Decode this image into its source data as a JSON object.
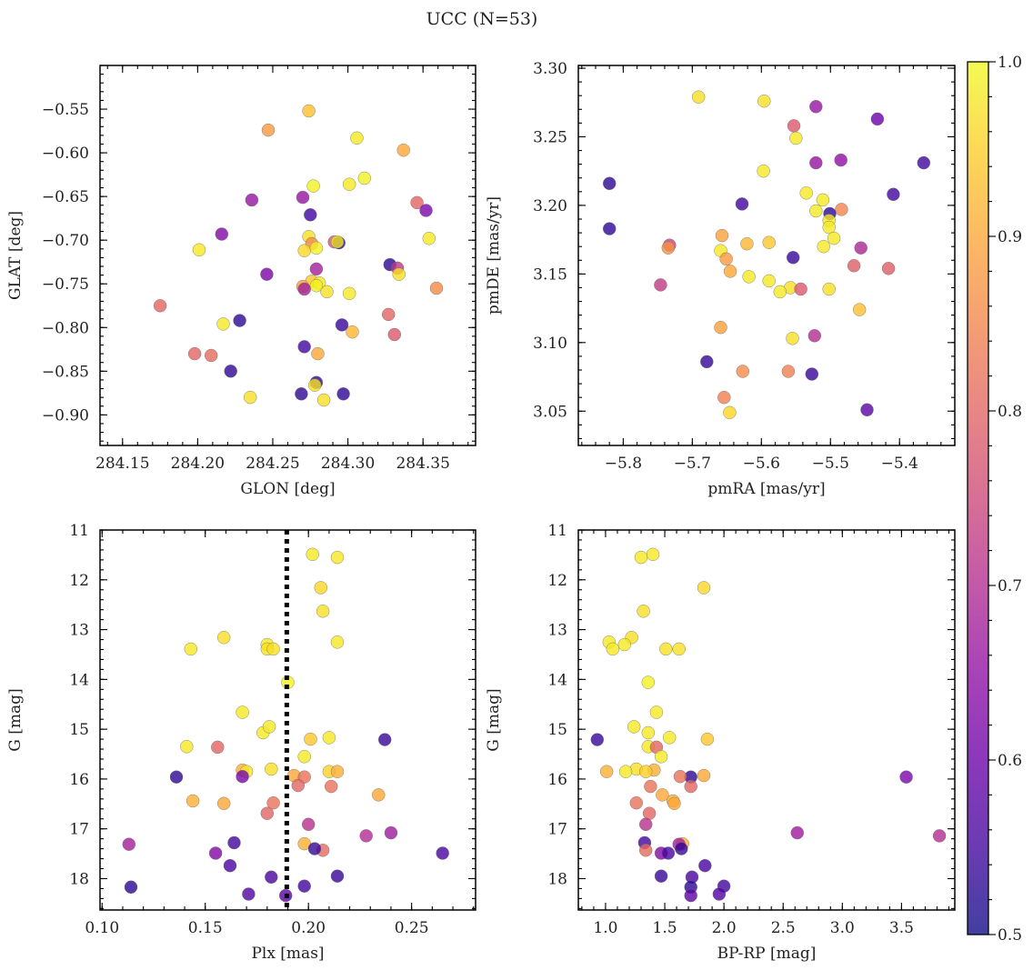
{
  "suptitle": "UCC (N=53)",
  "colorbar": {
    "min": 0.5,
    "max": 1.0,
    "ticks": [
      "0.5",
      "0.6",
      "0.7",
      "0.8",
      "0.9",
      "1.0"
    ],
    "colormap": "plasma"
  },
  "chart_data": [
    {
      "type": "scatter",
      "xlabel": "GLON [deg]",
      "ylabel": "GLAT [deg]",
      "xlim": [
        284.135,
        284.385
      ],
      "ylim": [
        -0.935,
        -0.5
      ],
      "xticks": [
        "284.15",
        "284.20",
        "284.25",
        "284.30",
        "284.35"
      ],
      "yticks": [
        "-0.55",
        "-0.60",
        "-0.65",
        "-0.70",
        "-0.75",
        "-0.80",
        "-0.85",
        "-0.90"
      ],
      "points": [
        [
          284.274,
          -0.552,
          0.93
        ],
        [
          284.247,
          -0.574,
          0.88
        ],
        [
          284.306,
          -0.583,
          0.98
        ],
        [
          284.337,
          -0.597,
          0.9
        ],
        [
          284.311,
          -0.629,
          0.99
        ],
        [
          284.301,
          -0.636,
          0.98
        ],
        [
          284.277,
          -0.638,
          0.99
        ],
        [
          284.236,
          -0.654,
          0.66
        ],
        [
          284.27,
          -0.651,
          0.66
        ],
        [
          284.346,
          -0.657,
          0.8
        ],
        [
          284.352,
          -0.666,
          0.62
        ],
        [
          284.275,
          -0.671,
          0.55
        ],
        [
          284.216,
          -0.693,
          0.63
        ],
        [
          284.274,
          -0.696,
          0.97
        ],
        [
          284.291,
          -0.702,
          0.77
        ],
        [
          284.294,
          -0.703,
          0.52
        ],
        [
          284.293,
          -0.702,
          0.98
        ],
        [
          284.276,
          -0.704,
          0.86
        ],
        [
          284.201,
          -0.711,
          0.98
        ],
        [
          284.271,
          -0.712,
          0.96
        ],
        [
          284.279,
          -0.709,
          0.99
        ],
        [
          284.354,
          -0.698,
          0.98
        ],
        [
          284.328,
          -0.728,
          0.53
        ],
        [
          284.333,
          -0.732,
          0.72
        ],
        [
          284.279,
          -0.733,
          0.68
        ],
        [
          284.246,
          -0.739,
          0.62
        ],
        [
          284.334,
          -0.739,
          0.97
        ],
        [
          284.276,
          -0.747,
          0.94
        ],
        [
          284.281,
          -0.749,
          0.98
        ],
        [
          284.279,
          -0.752,
          0.99
        ],
        [
          284.27,
          -0.753,
          0.89
        ],
        [
          284.271,
          -0.756,
          0.68
        ],
        [
          284.359,
          -0.755,
          0.86
        ],
        [
          284.286,
          -0.759,
          0.97
        ],
        [
          284.301,
          -0.761,
          0.98
        ],
        [
          284.175,
          -0.775,
          0.8
        ],
        [
          284.327,
          -0.785,
          0.8
        ],
        [
          284.228,
          -0.792,
          0.53
        ],
        [
          284.217,
          -0.796,
          0.98
        ],
        [
          284.296,
          -0.797,
          0.54
        ],
        [
          284.303,
          -0.805,
          0.92
        ],
        [
          284.331,
          -0.808,
          0.78
        ],
        [
          284.271,
          -0.822,
          0.55
        ],
        [
          284.28,
          -0.83,
          0.9
        ],
        [
          284.198,
          -0.83,
          0.8
        ],
        [
          284.209,
          -0.832,
          0.81
        ],
        [
          284.222,
          -0.85,
          0.53
        ],
        [
          284.279,
          -0.863,
          0.53
        ],
        [
          284.278,
          -0.866,
          0.97
        ],
        [
          284.269,
          -0.876,
          0.53
        ],
        [
          284.297,
          -0.876,
          0.53
        ],
        [
          284.235,
          -0.88,
          0.97
        ],
        [
          284.284,
          -0.883,
          0.97
        ]
      ]
    },
    {
      "type": "scatter",
      "xlabel": "pmRA [mas/yr]",
      "ylabel": "pmDE [mas/yr]",
      "xlim": [
        -5.865,
        -5.32
      ],
      "ylim": [
        3.025,
        3.302
      ],
      "xticks": [
        "-5.8",
        "-5.7",
        "-5.6",
        "-5.5",
        "-5.4"
      ],
      "yticks": [
        "3.30",
        "3.25",
        "3.20",
        "3.15",
        "3.10",
        "3.05"
      ],
      "points": [
        [
          -5.691,
          3.279,
          0.97
        ],
        [
          -5.596,
          3.276,
          0.97
        ],
        [
          -5.521,
          3.272,
          0.66
        ],
        [
          -5.432,
          3.263,
          0.6
        ],
        [
          -5.553,
          3.258,
          0.78
        ],
        [
          -5.55,
          3.249,
          0.98
        ],
        [
          -5.365,
          3.231,
          0.55
        ],
        [
          -5.521,
          3.231,
          0.66
        ],
        [
          -5.485,
          3.233,
          0.65
        ],
        [
          -5.597,
          3.225,
          0.98
        ],
        [
          -5.82,
          3.216,
          0.53
        ],
        [
          -5.535,
          3.209,
          0.98
        ],
        [
          -5.409,
          3.208,
          0.55
        ],
        [
          -5.511,
          3.204,
          0.98
        ],
        [
          -5.628,
          3.201,
          0.55
        ],
        [
          -5.521,
          3.196,
          0.98
        ],
        [
          -5.484,
          3.197,
          0.85
        ],
        [
          -5.501,
          3.194,
          0.53
        ],
        [
          -5.502,
          3.189,
          0.98
        ],
        [
          -5.502,
          3.184,
          0.98
        ],
        [
          -5.82,
          3.183,
          0.53
        ],
        [
          -5.657,
          3.178,
          0.89
        ],
        [
          -5.495,
          3.176,
          0.98
        ],
        [
          -5.589,
          3.173,
          0.94
        ],
        [
          -5.621,
          3.172,
          0.92
        ],
        [
          -5.733,
          3.171,
          0.74
        ],
        [
          -5.735,
          3.169,
          0.87
        ],
        [
          -5.51,
          3.17,
          0.98
        ],
        [
          -5.456,
          3.169,
          0.69
        ],
        [
          -5.659,
          3.167,
          0.98
        ],
        [
          -5.554,
          3.162,
          0.54
        ],
        [
          -5.651,
          3.161,
          0.88
        ],
        [
          -5.466,
          3.156,
          0.79
        ],
        [
          -5.645,
          3.152,
          0.9
        ],
        [
          -5.416,
          3.154,
          0.79
        ],
        [
          -5.618,
          3.148,
          0.98
        ],
        [
          -5.589,
          3.145,
          0.98
        ],
        [
          -5.746,
          3.142,
          0.73
        ],
        [
          -5.558,
          3.14,
          0.97
        ],
        [
          -5.543,
          3.139,
          0.78
        ],
        [
          -5.502,
          3.139,
          0.97
        ],
        [
          -5.573,
          3.137,
          0.98
        ],
        [
          -5.458,
          3.124,
          0.93
        ],
        [
          -5.659,
          3.111,
          0.89
        ],
        [
          -5.523,
          3.105,
          0.7
        ],
        [
          -5.555,
          3.103,
          0.97
        ],
        [
          -5.679,
          3.086,
          0.54
        ],
        [
          -5.527,
          3.077,
          0.54
        ],
        [
          -5.627,
          3.079,
          0.86
        ],
        [
          -5.561,
          3.079,
          0.84
        ],
        [
          -5.654,
          3.06,
          0.84
        ],
        [
          -5.447,
          3.051,
          0.58
        ],
        [
          -5.646,
          3.049,
          0.96
        ]
      ]
    },
    {
      "type": "scatter",
      "xlabel": "Plx [mas]",
      "ylabel": "G [mag]",
      "xlim": [
        0.099,
        0.281
      ],
      "ylim": [
        18.63,
        11.0
      ],
      "xticks": [
        "0.10",
        "0.15",
        "0.20",
        "0.25"
      ],
      "yticks": [
        "11",
        "12",
        "13",
        "14",
        "15",
        "16",
        "17",
        "18"
      ],
      "vline": 0.1895,
      "points": [
        [
          0.202,
          11.49,
          0.98
        ],
        [
          0.214,
          11.55,
          0.98
        ],
        [
          0.206,
          12.16,
          0.96
        ],
        [
          0.207,
          12.63,
          0.97
        ],
        [
          0.159,
          13.16,
          0.97
        ],
        [
          0.214,
          13.25,
          0.98
        ],
        [
          0.18,
          13.3,
          0.98
        ],
        [
          0.143,
          13.39,
          0.98
        ],
        [
          0.18,
          13.39,
          0.97
        ],
        [
          0.183,
          13.39,
          0.97
        ],
        [
          0.19,
          14.06,
          0.99
        ],
        [
          0.168,
          14.66,
          0.98
        ],
        [
          0.178,
          15.07,
          0.98
        ],
        [
          0.181,
          14.95,
          0.98
        ],
        [
          0.21,
          15.17,
          0.98
        ],
        [
          0.201,
          15.2,
          0.94
        ],
        [
          0.237,
          15.21,
          0.54
        ],
        [
          0.141,
          15.35,
          0.98
        ],
        [
          0.156,
          15.36,
          0.8
        ],
        [
          0.198,
          15.55,
          0.98
        ],
        [
          0.168,
          15.82,
          0.91
        ],
        [
          0.17,
          15.85,
          0.98
        ],
        [
          0.182,
          15.8,
          0.97
        ],
        [
          0.21,
          15.85,
          0.95
        ],
        [
          0.214,
          15.85,
          0.91
        ],
        [
          0.136,
          15.96,
          0.53
        ],
        [
          0.168,
          15.95,
          0.62
        ],
        [
          0.193,
          15.93,
          0.9
        ],
        [
          0.198,
          15.96,
          0.82
        ],
        [
          0.211,
          16.15,
          0.82
        ],
        [
          0.195,
          16.13,
          0.8
        ],
        [
          0.234,
          16.32,
          0.9
        ],
        [
          0.144,
          16.44,
          0.91
        ],
        [
          0.159,
          16.49,
          0.9
        ],
        [
          0.183,
          16.48,
          0.82
        ],
        [
          0.18,
          16.69,
          0.8
        ],
        [
          0.2,
          16.91,
          0.71
        ],
        [
          0.24,
          17.08,
          0.67
        ],
        [
          0.228,
          17.14,
          0.7
        ],
        [
          0.113,
          17.31,
          0.68
        ],
        [
          0.198,
          17.3,
          0.91
        ],
        [
          0.207,
          17.43,
          0.81
        ],
        [
          0.203,
          17.4,
          0.54
        ],
        [
          0.155,
          17.49,
          0.63
        ],
        [
          0.164,
          17.28,
          0.55
        ],
        [
          0.265,
          17.49,
          0.56
        ],
        [
          0.162,
          17.74,
          0.56
        ],
        [
          0.214,
          17.95,
          0.54
        ],
        [
          0.182,
          17.97,
          0.56
        ],
        [
          0.114,
          18.17,
          0.53
        ],
        [
          0.198,
          18.15,
          0.55
        ],
        [
          0.171,
          18.31,
          0.57
        ],
        [
          0.189,
          18.34,
          0.58
        ]
      ]
    },
    {
      "type": "scatter",
      "xlabel": "BP-RP [mag]",
      "ylabel": "G [mag]",
      "xlim": [
        0.77,
        3.95
      ],
      "ylim": [
        18.63,
        11.0
      ],
      "xticks": [
        "1.0",
        "1.5",
        "2.0",
        "2.5",
        "3.0",
        "3.5"
      ],
      "yticks": [
        "11",
        "12",
        "13",
        "14",
        "15",
        "16",
        "17",
        "18"
      ],
      "points": [
        [
          1.4,
          11.49,
          0.98
        ],
        [
          1.3,
          11.55,
          0.98
        ],
        [
          1.83,
          12.16,
          0.96
        ],
        [
          1.32,
          12.63,
          0.97
        ],
        [
          1.22,
          13.16,
          0.97
        ],
        [
          1.03,
          13.25,
          0.98
        ],
        [
          1.16,
          13.3,
          0.98
        ],
        [
          1.06,
          13.39,
          0.98
        ],
        [
          1.51,
          13.39,
          0.97
        ],
        [
          1.62,
          13.39,
          0.97
        ],
        [
          1.36,
          14.06,
          0.99
        ],
        [
          1.43,
          14.66,
          0.98
        ],
        [
          1.24,
          14.95,
          0.98
        ],
        [
          1.36,
          15.07,
          0.98
        ],
        [
          1.54,
          15.17,
          0.98
        ],
        [
          1.86,
          15.2,
          0.94
        ],
        [
          0.93,
          15.21,
          0.54
        ],
        [
          1.36,
          15.35,
          0.98
        ],
        [
          1.43,
          15.36,
          0.8
        ],
        [
          1.47,
          15.55,
          0.98
        ],
        [
          1.41,
          15.82,
          0.91
        ],
        [
          1.26,
          15.8,
          0.97
        ],
        [
          1.17,
          15.85,
          0.98
        ],
        [
          1.01,
          15.85,
          0.91
        ],
        [
          1.34,
          15.85,
          0.95
        ],
        [
          1.72,
          15.96,
          0.53
        ],
        [
          1.63,
          15.95,
          0.82
        ],
        [
          1.83,
          15.93,
          0.9
        ],
        [
          3.54,
          15.96,
          0.62
        ],
        [
          1.38,
          16.15,
          0.82
        ],
        [
          1.72,
          16.15,
          0.8
        ],
        [
          1.48,
          16.32,
          0.9
        ],
        [
          1.26,
          16.48,
          0.82
        ],
        [
          1.57,
          16.44,
          0.91
        ],
        [
          1.58,
          16.49,
          0.9
        ],
        [
          1.37,
          16.69,
          0.8
        ],
        [
          1.34,
          16.91,
          0.71
        ],
        [
          2.62,
          17.08,
          0.67
        ],
        [
          3.82,
          17.14,
          0.7
        ],
        [
          1.65,
          17.3,
          0.91
        ],
        [
          1.33,
          17.28,
          0.55
        ],
        [
          1.62,
          17.31,
          0.68
        ],
        [
          1.34,
          17.43,
          0.81
        ],
        [
          1.64,
          17.4,
          0.54
        ],
        [
          1.47,
          17.49,
          0.63
        ],
        [
          1.53,
          17.49,
          0.56
        ],
        [
          1.84,
          17.74,
          0.56
        ],
        [
          1.47,
          17.95,
          0.54
        ],
        [
          1.73,
          17.97,
          0.56
        ],
        [
          1.72,
          18.17,
          0.53
        ],
        [
          2.0,
          18.15,
          0.55
        ],
        [
          1.96,
          18.31,
          0.57
        ],
        [
          1.72,
          18.34,
          0.58
        ]
      ]
    }
  ]
}
